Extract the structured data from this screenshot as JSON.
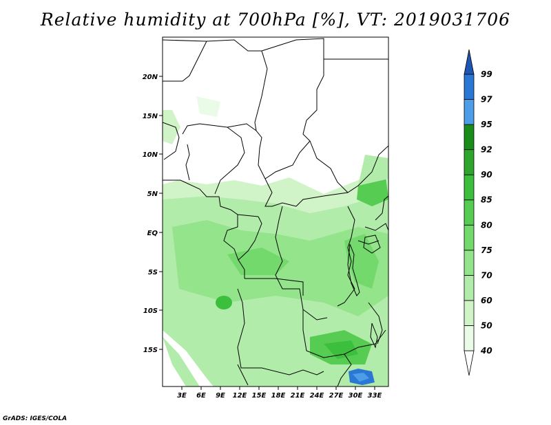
{
  "title": "Relative humidity at 700hPa [%], VT: 2019031706",
  "credit": "GrADS: IGES/COLA",
  "map": {
    "lon_range": [
      0,
      35
    ],
    "lat_range": [
      -20,
      25
    ],
    "lon_ticks": [
      "3E",
      "6E",
      "9E",
      "12E",
      "15E",
      "18E",
      "21E",
      "24E",
      "27E",
      "30E",
      "33E"
    ],
    "lat_ticks": [
      "20N",
      "15N",
      "10N",
      "5N",
      "EQ",
      "5S",
      "10S",
      "15S"
    ]
  },
  "colorbar": {
    "labels": [
      "40",
      "50",
      "60",
      "70",
      "75",
      "80",
      "85",
      "90",
      "92",
      "95",
      "97",
      "99"
    ],
    "colors": [
      "#ffffff",
      "#eafbe7",
      "#d0f4c8",
      "#b2ecaa",
      "#94e48b",
      "#74d96c",
      "#56cc52",
      "#3cbf3c",
      "#2ea62e",
      "#1a8c1a",
      "#4d9de8",
      "#2a78d4",
      "#1f56b4"
    ]
  }
}
